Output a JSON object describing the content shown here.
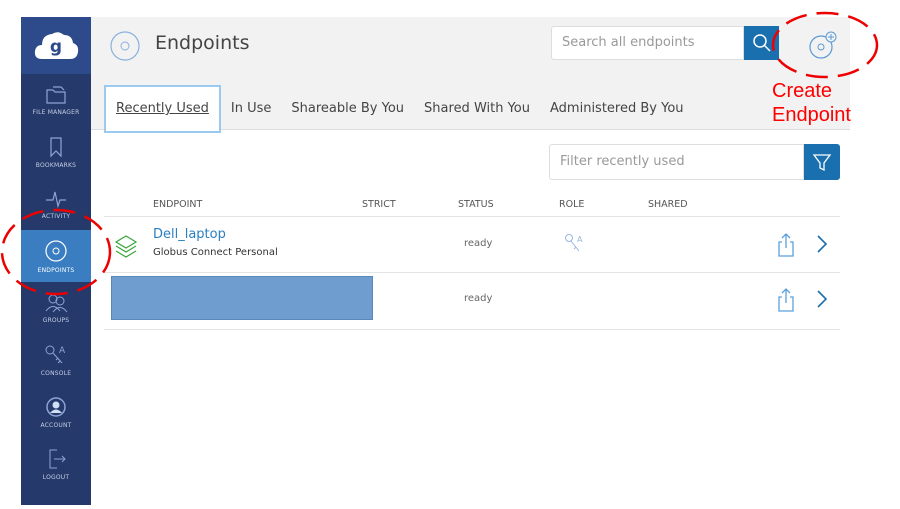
{
  "sidebar": {
    "items": [
      {
        "label": "FILE MANAGER",
        "icon": "folder-icon"
      },
      {
        "label": "BOOKMARKS",
        "icon": "bookmark-icon"
      },
      {
        "label": "ACTIVITY",
        "icon": "activity-icon"
      },
      {
        "label": "ENDPOINTS",
        "icon": "endpoint-icon",
        "active": true
      },
      {
        "label": "GROUPS",
        "icon": "groups-icon"
      },
      {
        "label": "CONSOLE",
        "icon": "key-icon"
      },
      {
        "label": "ACCOUNT",
        "icon": "account-icon"
      },
      {
        "label": "LOGOUT",
        "icon": "logout-icon"
      }
    ]
  },
  "header": {
    "title": "Endpoints",
    "search_placeholder": "Search all endpoints"
  },
  "tabs": [
    "Recently Used",
    "In Use",
    "Shareable By You",
    "Shared With You",
    "Administered By You"
  ],
  "filter": {
    "placeholder": "Filter recently used"
  },
  "table": {
    "headers": [
      "ENDPOINT",
      "STRICT",
      "STATUS",
      "ROLE",
      "SHARED"
    ],
    "rows": [
      {
        "name": "Dell_laptop",
        "type": "Globus Connect Personal",
        "status": "ready"
      },
      {
        "status": "ready"
      }
    ]
  },
  "annotation": {
    "line1": "Create",
    "line2": "Endpoint",
    "color": "#ff0000"
  },
  "colors": {
    "sidebar": "#253a6b",
    "active": "#3a7ec1",
    "accent": "#1a6fae"
  }
}
